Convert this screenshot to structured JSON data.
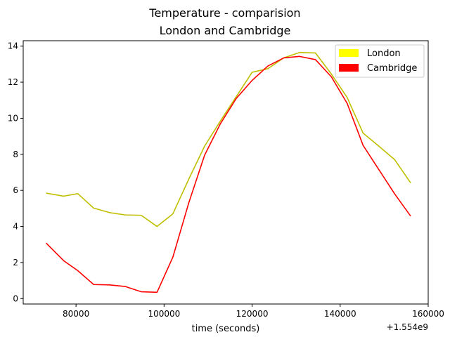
{
  "chart_data": {
    "type": "line",
    "title": "Temperature - comparision",
    "subtitle": "London and Cambridge",
    "xlabel": "time (seconds)",
    "ylabel": "",
    "x_offset_label": "+1.554e9",
    "xlim": [
      68000,
      160000
    ],
    "ylim": [
      -0.3,
      14.3
    ],
    "xticks": [
      80000,
      100000,
      120000,
      140000,
      160000
    ],
    "xtick_labels": [
      "80000",
      "100000",
      "120000",
      "140000",
      "160000"
    ],
    "yticks": [
      0,
      2,
      4,
      6,
      8,
      10,
      12,
      14
    ],
    "ytick_labels": [
      "0",
      "2",
      "4",
      "6",
      "8",
      "10",
      "12",
      "14"
    ],
    "grid": false,
    "legend_position": "top-right",
    "series": [
      {
        "name": "London",
        "line_color": "#bfbf00",
        "legend_color": "#ffff00",
        "x": [
          73200,
          77200,
          80400,
          84000,
          87600,
          91200,
          94800,
          98400,
          102000,
          105600,
          109200,
          112800,
          116400,
          120000,
          123600,
          127200,
          130800,
          134400,
          138000,
          141600,
          145200,
          148800,
          152400,
          156000
        ],
        "y": [
          5.85,
          5.68,
          5.82,
          5.02,
          4.77,
          4.64,
          4.62,
          4.0,
          4.7,
          6.62,
          8.45,
          9.85,
          11.2,
          12.55,
          12.75,
          13.35,
          13.65,
          13.62,
          12.45,
          11.15,
          9.18,
          8.45,
          7.7,
          6.42
        ]
      },
      {
        "name": "Cambridge",
        "line_color": "#ff0000",
        "legend_color": "#ff0000",
        "x": [
          73200,
          77200,
          80400,
          84000,
          87600,
          91200,
          94800,
          98400,
          102000,
          105600,
          109200,
          112800,
          116400,
          120000,
          123600,
          127200,
          130800,
          134400,
          138000,
          141600,
          145200,
          148800,
          152400,
          156000
        ],
        "y": [
          3.08,
          2.1,
          1.55,
          0.78,
          0.76,
          0.67,
          0.38,
          0.35,
          2.3,
          5.3,
          7.95,
          9.7,
          11.1,
          12.1,
          12.9,
          13.35,
          13.43,
          13.25,
          12.3,
          10.82,
          8.5,
          7.15,
          5.8,
          4.58
        ]
      }
    ]
  }
}
